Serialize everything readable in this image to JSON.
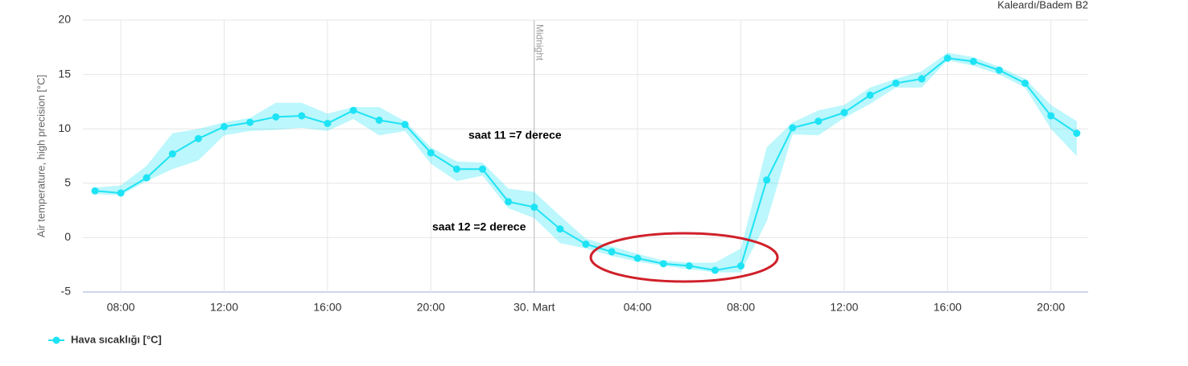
{
  "chart_data": {
    "type": "line",
    "subtitle": "Kaleardı/Badem B2",
    "y_label": "Air temperature, high precision [°C]",
    "annotations": [
      "Midnight",
      "saat 11 =7 derece",
      "saat 12 =2 derece"
    ],
    "categories": [
      null,
      "08:00",
      null,
      null,
      null,
      "12:00",
      null,
      null,
      null,
      "16:00",
      null,
      null,
      null,
      "20:00",
      null,
      null,
      null,
      "30. Mart",
      null,
      null,
      null,
      "04:00",
      null,
      null,
      null,
      "08:00",
      null,
      null,
      null,
      "12:00",
      null,
      null,
      null,
      "16:00",
      null,
      null,
      null,
      "20:00",
      null
    ],
    "series": [
      {
        "name": "Hava sıcaklığı [°C]",
        "color": "#1ee3f5",
        "values": [
          4.3,
          4.1,
          5.5,
          7.7,
          9.1,
          10.2,
          10.6,
          11.1,
          11.2,
          10.5,
          11.7,
          10.8,
          10.4,
          7.8,
          6.3,
          6.3,
          3.3,
          2.8,
          0.8,
          -0.6,
          -1.3,
          -1.9,
          -2.4,
          -2.6,
          -3.0,
          -2.6,
          5.3,
          10.1,
          10.7,
          11.5,
          13.1,
          14.2,
          14.6,
          16.5,
          16.2,
          15.4,
          14.2,
          11.2,
          9.6
        ],
        "range_low": [
          4.0,
          3.9,
          5.2,
          6.3,
          7.1,
          9.4,
          9.8,
          9.9,
          10.1,
          9.8,
          10.9,
          9.4,
          9.8,
          6.8,
          5.2,
          5.7,
          2.7,
          1.8,
          -0.5,
          -1.0,
          -1.7,
          -2.2,
          -2.6,
          -2.9,
          -3.2,
          -3.2,
          1.5,
          9.5,
          9.4,
          11.0,
          12.3,
          13.8,
          13.8,
          16.3,
          15.8,
          15.0,
          13.8,
          10.0,
          7.5
        ],
        "range_high": [
          4.6,
          4.8,
          6.6,
          9.6,
          10.0,
          10.6,
          11.0,
          12.4,
          12.4,
          11.4,
          12.0,
          12.0,
          10.7,
          8.3,
          7.0,
          6.9,
          4.5,
          4.2,
          2.0,
          -0.1,
          -0.8,
          -1.5,
          -2.1,
          -2.3,
          -2.3,
          -1.0,
          8.3,
          10.6,
          11.7,
          12.2,
          13.8,
          14.6,
          15.3,
          17.0,
          16.6,
          15.7,
          14.6,
          12.2,
          10.7
        ]
      }
    ],
    "ylim": [
      -5,
      20
    ],
    "yticks": [
      -5,
      0,
      5,
      10,
      15,
      20
    ],
    "grid": true,
    "legend": "bottom-left"
  }
}
